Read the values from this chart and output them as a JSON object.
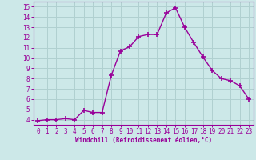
{
  "x": [
    0,
    1,
    2,
    3,
    4,
    5,
    6,
    7,
    8,
    9,
    10,
    11,
    12,
    13,
    14,
    15,
    16,
    17,
    18,
    19,
    20,
    21,
    22,
    23
  ],
  "y": [
    3.9,
    4.0,
    4.0,
    4.1,
    4.0,
    4.9,
    4.7,
    4.7,
    8.3,
    10.7,
    11.1,
    12.1,
    12.3,
    12.3,
    14.4,
    14.9,
    13.0,
    11.5,
    10.1,
    8.8,
    8.0,
    7.8,
    7.3,
    6.0
  ],
  "line_color": "#990099",
  "marker": "+",
  "marker_size": 4,
  "bg_color": "#cce8e8",
  "grid_color": "#b0d0d0",
  "xlabel": "Windchill (Refroidissement éolien,°C)",
  "xlabel_color": "#990099",
  "ylim": [
    3.5,
    15.5
  ],
  "xlim": [
    -0.5,
    23.5
  ],
  "yticks": [
    4,
    5,
    6,
    7,
    8,
    9,
    10,
    11,
    12,
    13,
    14,
    15
  ],
  "xticks": [
    0,
    1,
    2,
    3,
    4,
    5,
    6,
    7,
    8,
    9,
    10,
    11,
    12,
    13,
    14,
    15,
    16,
    17,
    18,
    19,
    20,
    21,
    22,
    23
  ],
  "tick_color": "#990099",
  "spine_color": "#990099",
  "line_width": 1.0,
  "marker_color": "#990099"
}
